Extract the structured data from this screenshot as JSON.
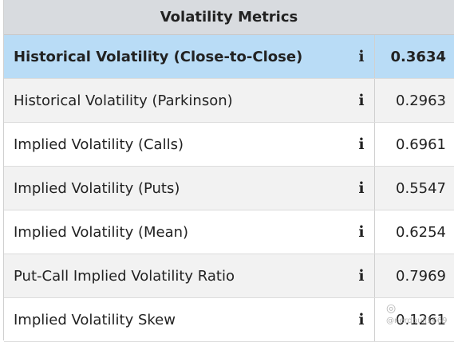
{
  "title": "Volatility Metrics",
  "info_glyph": "i",
  "rows": [
    {
      "label": "Historical Volatility (Close-to-Close)",
      "value": "0.3634"
    },
    {
      "label": "Historical Volatility (Parkinson)",
      "value": "0.2963"
    },
    {
      "label": "Implied Volatility (Calls)",
      "value": "0.6961"
    },
    {
      "label": "Implied Volatility (Puts)",
      "value": "0.5547"
    },
    {
      "label": "Implied Volatility (Mean)",
      "value": "0.6254"
    },
    {
      "label": "Put-Call Implied Volatility Ratio",
      "value": "0.7969"
    },
    {
      "label": "Implied Volatility Skew",
      "value": "0.1261"
    }
  ],
  "watermark": "@nerdbull1669",
  "colors": {
    "header_bg": "#d8dbdf",
    "highlight_bg": "#b9dcf6",
    "stripe_bg": "#f2f2f2"
  }
}
